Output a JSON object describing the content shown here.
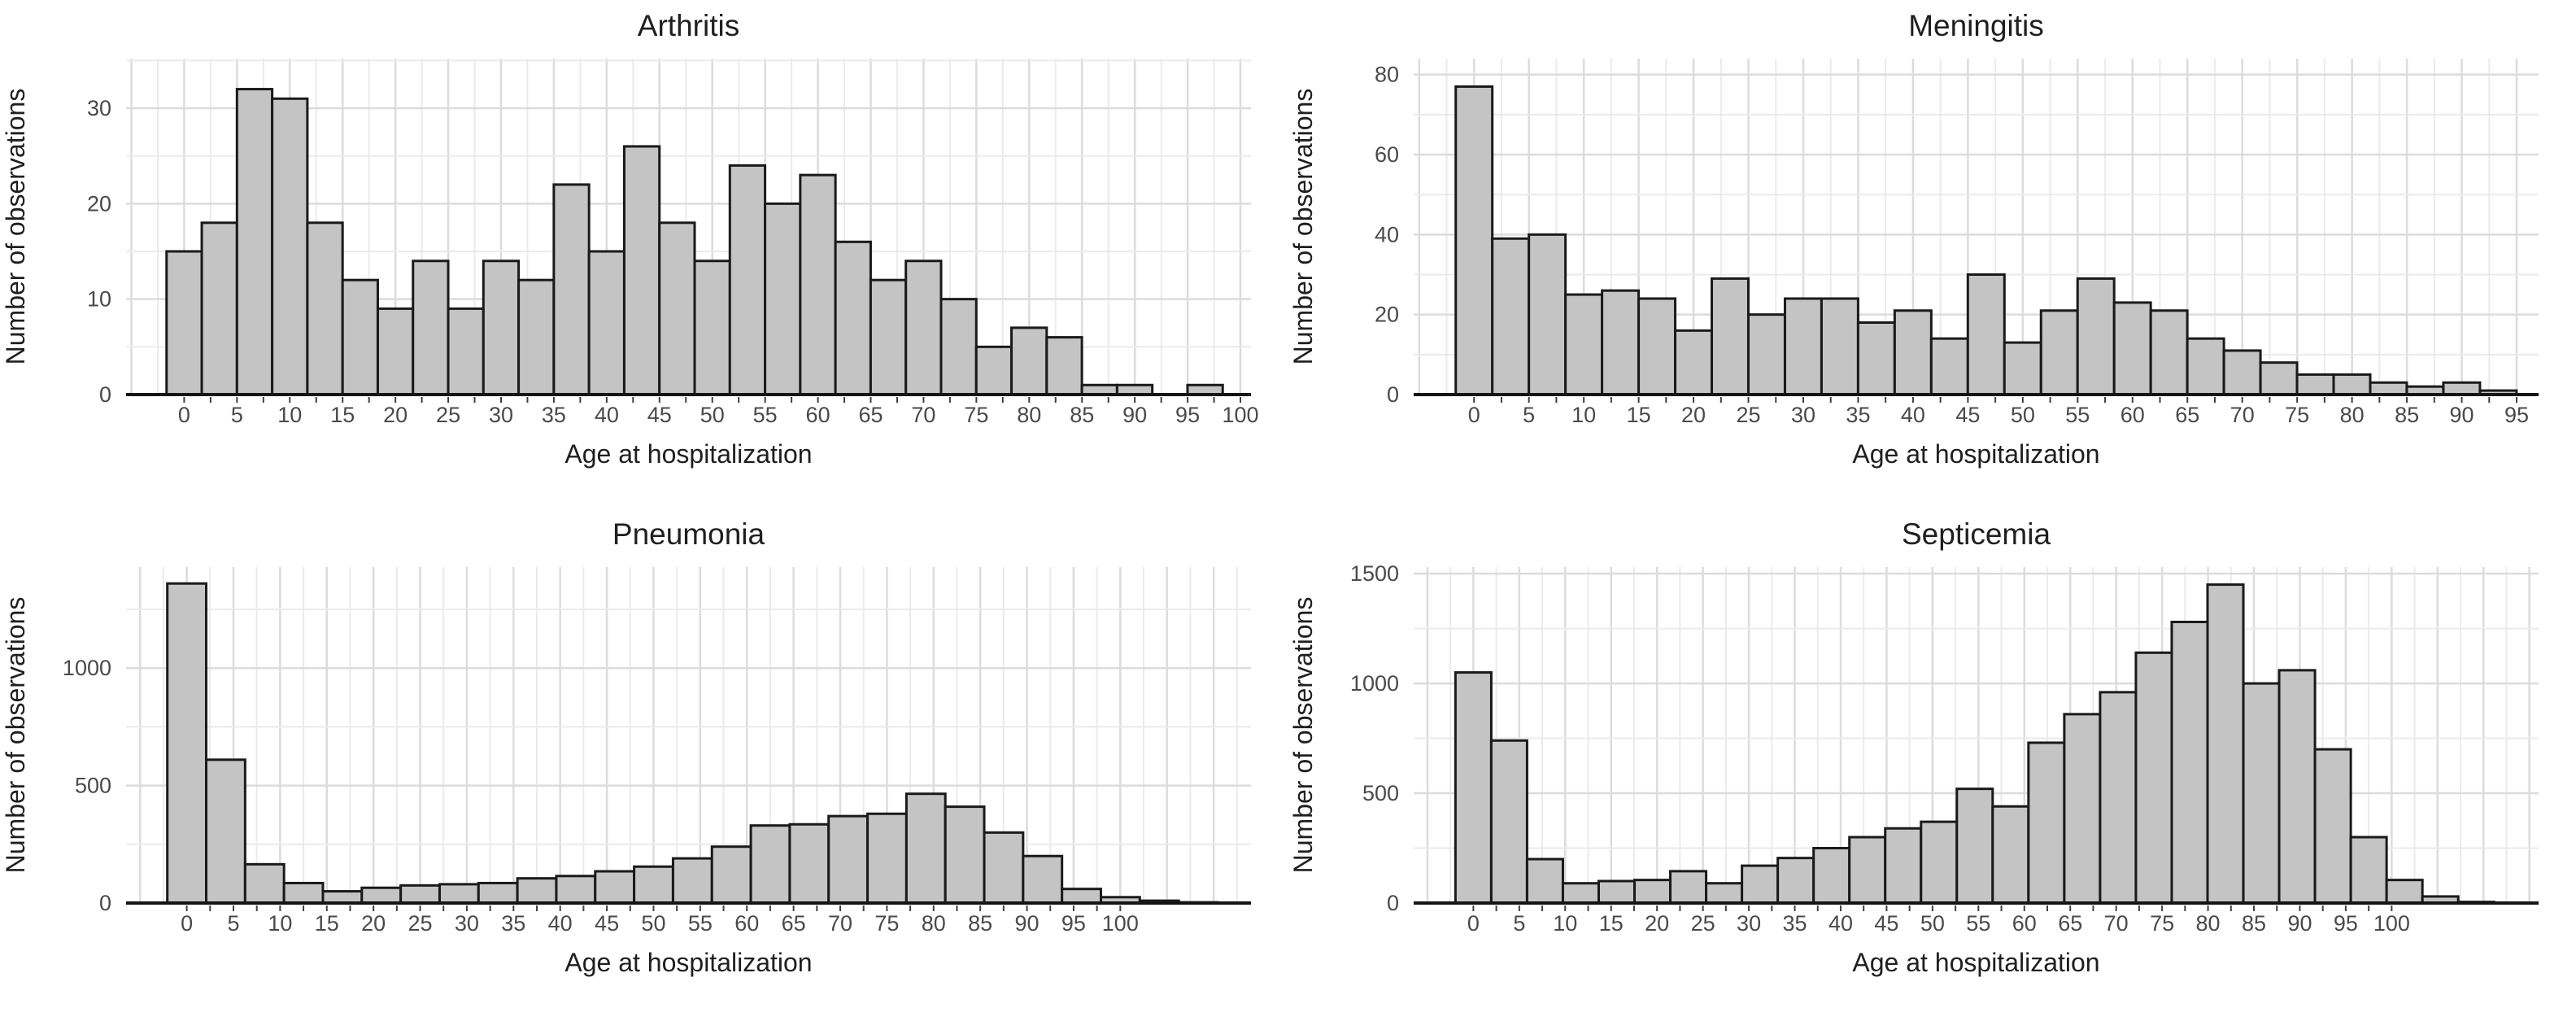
{
  "figure": {
    "description": "2x2 grid of histograms of age at hospitalization by disease",
    "background": "#ffffff"
  },
  "colors": {
    "bar_fill": "#c4c4c4",
    "bar_stroke": "#1a1a1a",
    "grid_major": "#dcdcdc",
    "grid_minor": "#ebebeb",
    "axis_line": "#151515",
    "tick_mark": "#3f3f3f",
    "tick_label": "#4a4a4a",
    "text": "#1f1f1f"
  },
  "chart_data": [
    {
      "type": "bar",
      "title": "Arthritis",
      "xlabel": "Age at hospitalization",
      "ylabel": "Number of observations",
      "bin_start": -1.667,
      "bin_width": 3.333,
      "values": [
        15,
        18,
        32,
        31,
        18,
        12,
        9,
        14,
        9,
        14,
        12,
        22,
        15,
        26,
        18,
        14,
        24,
        20,
        23,
        16,
        12,
        14,
        10,
        5,
        7,
        6,
        1,
        1,
        0,
        1
      ],
      "x_tick_labels": [
        0,
        5,
        10,
        15,
        20,
        25,
        30,
        35,
        40,
        45,
        50,
        55,
        60,
        65,
        70,
        75,
        80,
        85,
        90,
        95,
        100
      ],
      "x_minor_step": 2.5,
      "y_tick_labels": [
        0,
        10,
        20,
        30
      ],
      "y_minor_step": 5,
      "xlim": [
        -5.5,
        101
      ],
      "ylim": [
        0,
        35.2
      ],
      "grid": true,
      "legend": "none"
    },
    {
      "type": "bar",
      "title": "Meningitis",
      "xlabel": "Age at hospitalization",
      "ylabel": "Number of observations",
      "bin_start": -1.667,
      "bin_width": 3.333,
      "values": [
        77,
        39,
        40,
        25,
        26,
        24,
        16,
        29,
        20,
        24,
        24,
        18,
        21,
        14,
        30,
        13,
        21,
        29,
        23,
        21,
        14,
        11,
        8,
        5,
        5,
        3,
        2,
        3,
        1
      ],
      "x_tick_labels": [
        0,
        5,
        10,
        15,
        20,
        25,
        30,
        35,
        40,
        45,
        50,
        55,
        60,
        65,
        70,
        75,
        80,
        85,
        90,
        95
      ],
      "x_minor_step": 2.5,
      "y_tick_labels": [
        0,
        20,
        40,
        60,
        80
      ],
      "y_minor_step": 10,
      "xlim": [
        -5.5,
        97
      ],
      "ylim": [
        0,
        84
      ],
      "grid": true,
      "legend": "none"
    },
    {
      "type": "bar",
      "title": "Pneumonia",
      "xlabel": "Age at hospitalization",
      "ylabel": "Number of observations",
      "bin_start": -2.083,
      "bin_width": 4.167,
      "values": [
        1360,
        610,
        165,
        85,
        50,
        65,
        75,
        80,
        85,
        105,
        115,
        135,
        155,
        190,
        240,
        330,
        335,
        370,
        380,
        465,
        410,
        300,
        200,
        60,
        25,
        10,
        3
      ],
      "x_tick_labels": [
        0,
        5,
        10,
        15,
        20,
        25,
        30,
        35,
        40,
        45,
        50,
        55,
        60,
        65,
        70,
        75,
        80,
        85,
        90,
        95,
        100
      ],
      "x_minor_step": 2.5,
      "y_tick_labels": [
        0,
        500,
        1000
      ],
      "y_minor_step": 250,
      "xlim": [
        -6.5,
        114
      ],
      "ylim": [
        0,
        1430
      ],
      "grid": true,
      "legend": "none"
    },
    {
      "type": "bar",
      "title": "Septicemia",
      "xlabel": "Age at hospitalization",
      "ylabel": "Number of observations",
      "bin_start": -1.95,
      "bin_width": 3.9,
      "values": [
        1050,
        740,
        200,
        90,
        100,
        105,
        145,
        90,
        170,
        205,
        250,
        300,
        340,
        370,
        520,
        440,
        730,
        860,
        960,
        1140,
        1280,
        1450,
        1000,
        1060,
        700,
        300,
        105,
        30,
        5
      ],
      "x_tick_labels": [
        0,
        5,
        10,
        15,
        20,
        25,
        30,
        35,
        40,
        45,
        50,
        55,
        60,
        65,
        70,
        75,
        80,
        85,
        90,
        95,
        100
      ],
      "x_minor_step": 2.5,
      "y_tick_labels": [
        0,
        500,
        1000,
        1500
      ],
      "y_minor_step": 250,
      "xlim": [
        -6.5,
        116
      ],
      "ylim": [
        0,
        1530
      ],
      "grid": true,
      "legend": "none"
    }
  ]
}
